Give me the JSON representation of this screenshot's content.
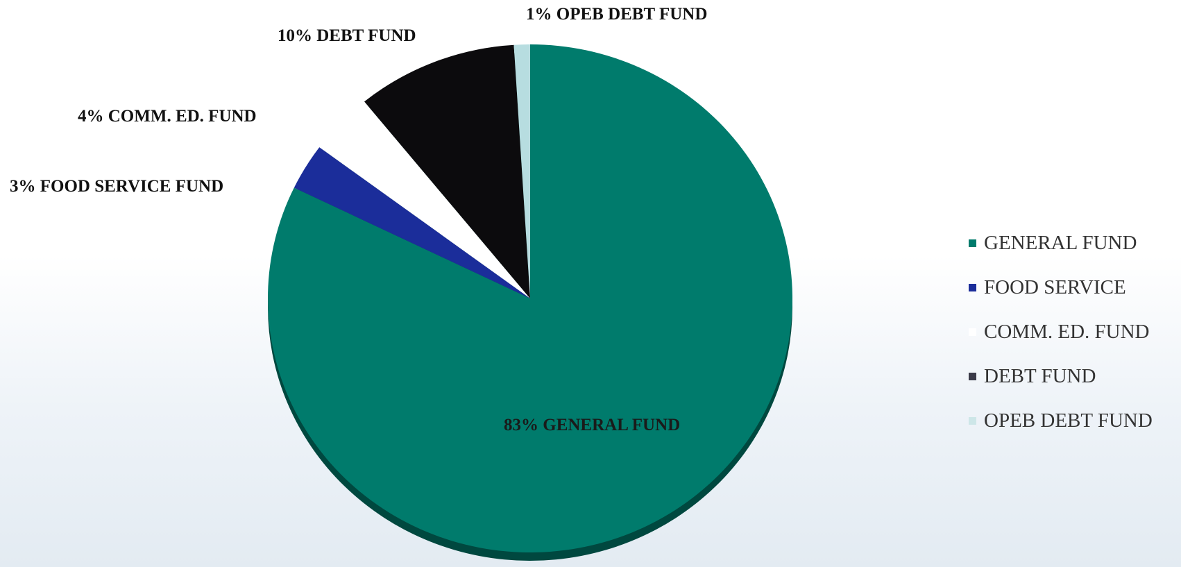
{
  "chart_data": {
    "type": "pie",
    "slices": [
      {
        "name": "GENERAL FUND",
        "value": 83,
        "label": "83% GENERAL FUND",
        "color": "#007b6c"
      },
      {
        "name": "FOOD SERVICE",
        "value": 3,
        "label": "3% FOOD SERVICE FUND",
        "color": "#1b2d9a"
      },
      {
        "name": "COMM. ED. FUND",
        "value": 4,
        "label": "4% COMM. ED. FUND",
        "color": "#ffffff"
      },
      {
        "name": "DEBT FUND",
        "value": 10,
        "label": "10% DEBT FUND",
        "color": "#0c0b0d"
      },
      {
        "name": "OPEB DEBT FUND",
        "value": 1,
        "label": "1% OPEB DEBT FUND",
        "color": "#b7dde0"
      }
    ],
    "legend": {
      "placement": "right",
      "entries": [
        {
          "label": "GENERAL FUND",
          "color": "#007b6c"
        },
        {
          "label": "FOOD SERVICE",
          "color": "#1b2d9a"
        },
        {
          "label": "COMM. ED. FUND",
          "color": "#ffffff"
        },
        {
          "label": "DEBT FUND",
          "color": "#3a3a48"
        },
        {
          "label": "OPEB DEBT FUND",
          "color": "#cde6e8"
        }
      ]
    }
  }
}
